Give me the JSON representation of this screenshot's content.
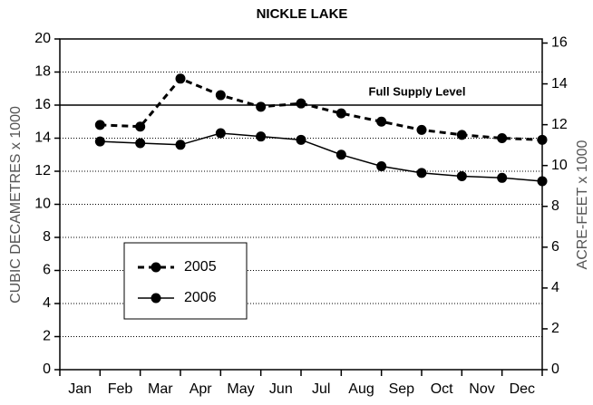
{
  "chart_data": {
    "type": "line",
    "title": "NICKLE LAKE",
    "ylabel": "CUBIC DECAMETRES x 1000",
    "y2label": "ACRE-FEET x 1000",
    "categories": [
      "Jan",
      "Feb",
      "Mar",
      "Apr",
      "May",
      "Jun",
      "Jul",
      "Aug",
      "Sep",
      "Oct",
      "Nov",
      "Dec"
    ],
    "series": [
      {
        "name": "2005",
        "color": "#000000",
        "dashed": true,
        "values": [
          14.8,
          14.7,
          17.6,
          16.6,
          15.9,
          16.1,
          15.5,
          15.0,
          14.5,
          14.2,
          14.0,
          13.9
        ]
      },
      {
        "name": "2006",
        "color": "#000000",
        "dashed": false,
        "values": [
          13.8,
          13.7,
          13.6,
          14.3,
          14.1,
          13.9,
          13.0,
          12.3,
          11.9,
          11.7,
          11.6,
          11.4
        ]
      }
    ],
    "reference_line": {
      "value": 16,
      "label": "Full Supply Level"
    },
    "ylim": [
      0,
      20
    ],
    "yticks": [
      0,
      2,
      4,
      6,
      8,
      10,
      12,
      14,
      16,
      18,
      20
    ],
    "y2lim": [
      0,
      16.2
    ],
    "y2ticks": [
      0,
      2,
      4,
      6,
      8,
      10,
      12,
      14,
      16
    ],
    "grid": true,
    "legend": "lower left"
  }
}
